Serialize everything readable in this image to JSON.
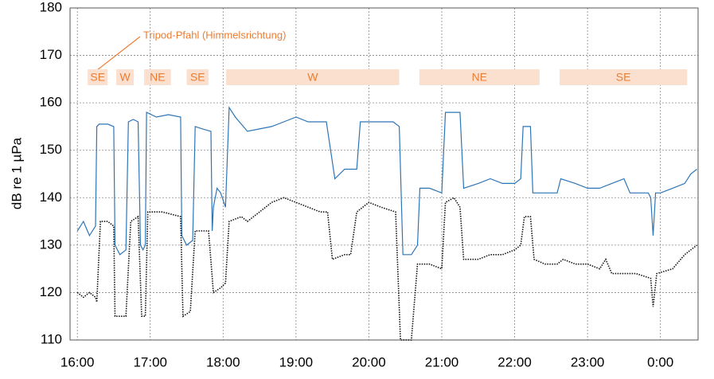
{
  "chart_data": {
    "type": "line",
    "y_label": "dB re 1 µPa",
    "annotation": "Tripod-Pfahl (Himmelsrichtung)",
    "xlim": [
      954,
      1471
    ],
    "xticks": [
      {
        "value": 960,
        "label": "16:00"
      },
      {
        "value": 1020,
        "label": "17:00"
      },
      {
        "value": 1080,
        "label": "18:00"
      },
      {
        "value": 1140,
        "label": "19:00"
      },
      {
        "value": 1200,
        "label": "20:00"
      },
      {
        "value": 1260,
        "label": "21:00"
      },
      {
        "value": 1320,
        "label": "22:00"
      },
      {
        "value": 1380,
        "label": "23:00"
      },
      {
        "value": 1440,
        "label": "0:00"
      }
    ],
    "ylim": [
      110,
      180
    ],
    "yticks": [
      110,
      120,
      130,
      140,
      150,
      160,
      170,
      180
    ],
    "grid": true,
    "sectors": [
      {
        "label": "SE",
        "start": 968.5,
        "end": 985
      },
      {
        "label": "W",
        "start": 992,
        "end": 1006.5
      },
      {
        "label": "NE",
        "start": 1015,
        "end": 1037
      },
      {
        "label": "SE",
        "start": 1050,
        "end": 1068
      },
      {
        "label": "W",
        "start": 1082.5,
        "end": 1225
      },
      {
        "label": "NE",
        "start": 1241.5,
        "end": 1340.5
      },
      {
        "label": "SE",
        "start": 1357,
        "end": 1462
      }
    ],
    "series": [
      {
        "color": "#2e75b6",
        "dash": false,
        "x": [
          960,
          965,
          970,
          975,
          976,
          978,
          985,
          990,
          991,
          995,
          1000,
          1002,
          1006,
          1010,
          1012,
          1014,
          1016,
          1017,
          1025,
          1035,
          1045,
          1046,
          1050,
          1055,
          1057,
          1063,
          1070,
          1071,
          1072,
          1075,
          1078,
          1082,
          1085,
          1090,
          1100,
          1110,
          1120,
          1130,
          1140,
          1150,
          1160,
          1165,
          1172,
          1180,
          1190,
          1193,
          1200,
          1220,
          1225,
          1228,
          1235,
          1240,
          1242,
          1250,
          1260,
          1263,
          1270,
          1275,
          1278,
          1290,
          1300,
          1310,
          1320,
          1325,
          1327,
          1333,
          1335,
          1340,
          1350,
          1355,
          1358,
          1370,
          1380,
          1390,
          1400,
          1410,
          1415,
          1420,
          1430,
          1432,
          1434,
          1436,
          1440,
          1450,
          1460,
          1465,
          1470
        ],
        "values": [
          133,
          135,
          132,
          134,
          155,
          155.5,
          155.5,
          155,
          130,
          128,
          129,
          156,
          156.5,
          156,
          130,
          129,
          130,
          158,
          157,
          157.5,
          157,
          132,
          130,
          131,
          155,
          154.5,
          154,
          133,
          138,
          142,
          141,
          138,
          159,
          157,
          154,
          154.5,
          155,
          156,
          157,
          156,
          156,
          156,
          144,
          146,
          146,
          156,
          156,
          156,
          155,
          128,
          128,
          130,
          142,
          142,
          141,
          158,
          158,
          158,
          142,
          143,
          144,
          143,
          143,
          144,
          155,
          155,
          141,
          141,
          141,
          141,
          144,
          143,
          142,
          142,
          143,
          144,
          141,
          141,
          141,
          140,
          132,
          141,
          141,
          142,
          143,
          145,
          146
        ]
      },
      {
        "color": "#111111",
        "dash": true,
        "x": [
          960,
          965,
          970,
          975,
          976,
          979,
          985,
          990,
          991,
          1000,
          1004,
          1010,
          1013,
          1016,
          1018,
          1030,
          1045,
          1047,
          1053,
          1057,
          1068,
          1072,
          1078,
          1082,
          1085,
          1095,
          1100,
          1110,
          1120,
          1130,
          1140,
          1150,
          1160,
          1166,
          1170,
          1180,
          1185,
          1190,
          1200,
          1210,
          1222,
          1226,
          1235,
          1240,
          1250,
          1260,
          1263,
          1270,
          1275,
          1278,
          1290,
          1300,
          1310,
          1320,
          1325,
          1328,
          1333,
          1336,
          1345,
          1355,
          1360,
          1370,
          1380,
          1390,
          1395,
          1400,
          1410,
          1420,
          1432,
          1434,
          1437,
          1450,
          1460,
          1470
        ],
        "values": [
          120,
          119,
          120,
          119,
          118,
          135,
          135,
          134,
          115,
          115,
          135,
          136,
          115,
          115,
          137,
          137,
          136,
          115,
          116,
          133,
          133,
          120,
          121,
          122,
          135,
          136,
          135,
          137,
          139,
          140,
          139,
          138,
          137,
          137,
          127,
          128,
          128,
          137,
          139,
          138,
          137,
          110,
          110,
          126,
          126,
          125,
          139,
          140,
          138,
          127,
          127,
          128,
          128,
          129,
          130,
          136,
          136,
          127,
          126,
          126,
          127,
          126,
          126,
          125,
          127,
          124,
          124,
          124,
          123,
          117,
          124,
          125,
          128,
          130
        ]
      }
    ]
  }
}
